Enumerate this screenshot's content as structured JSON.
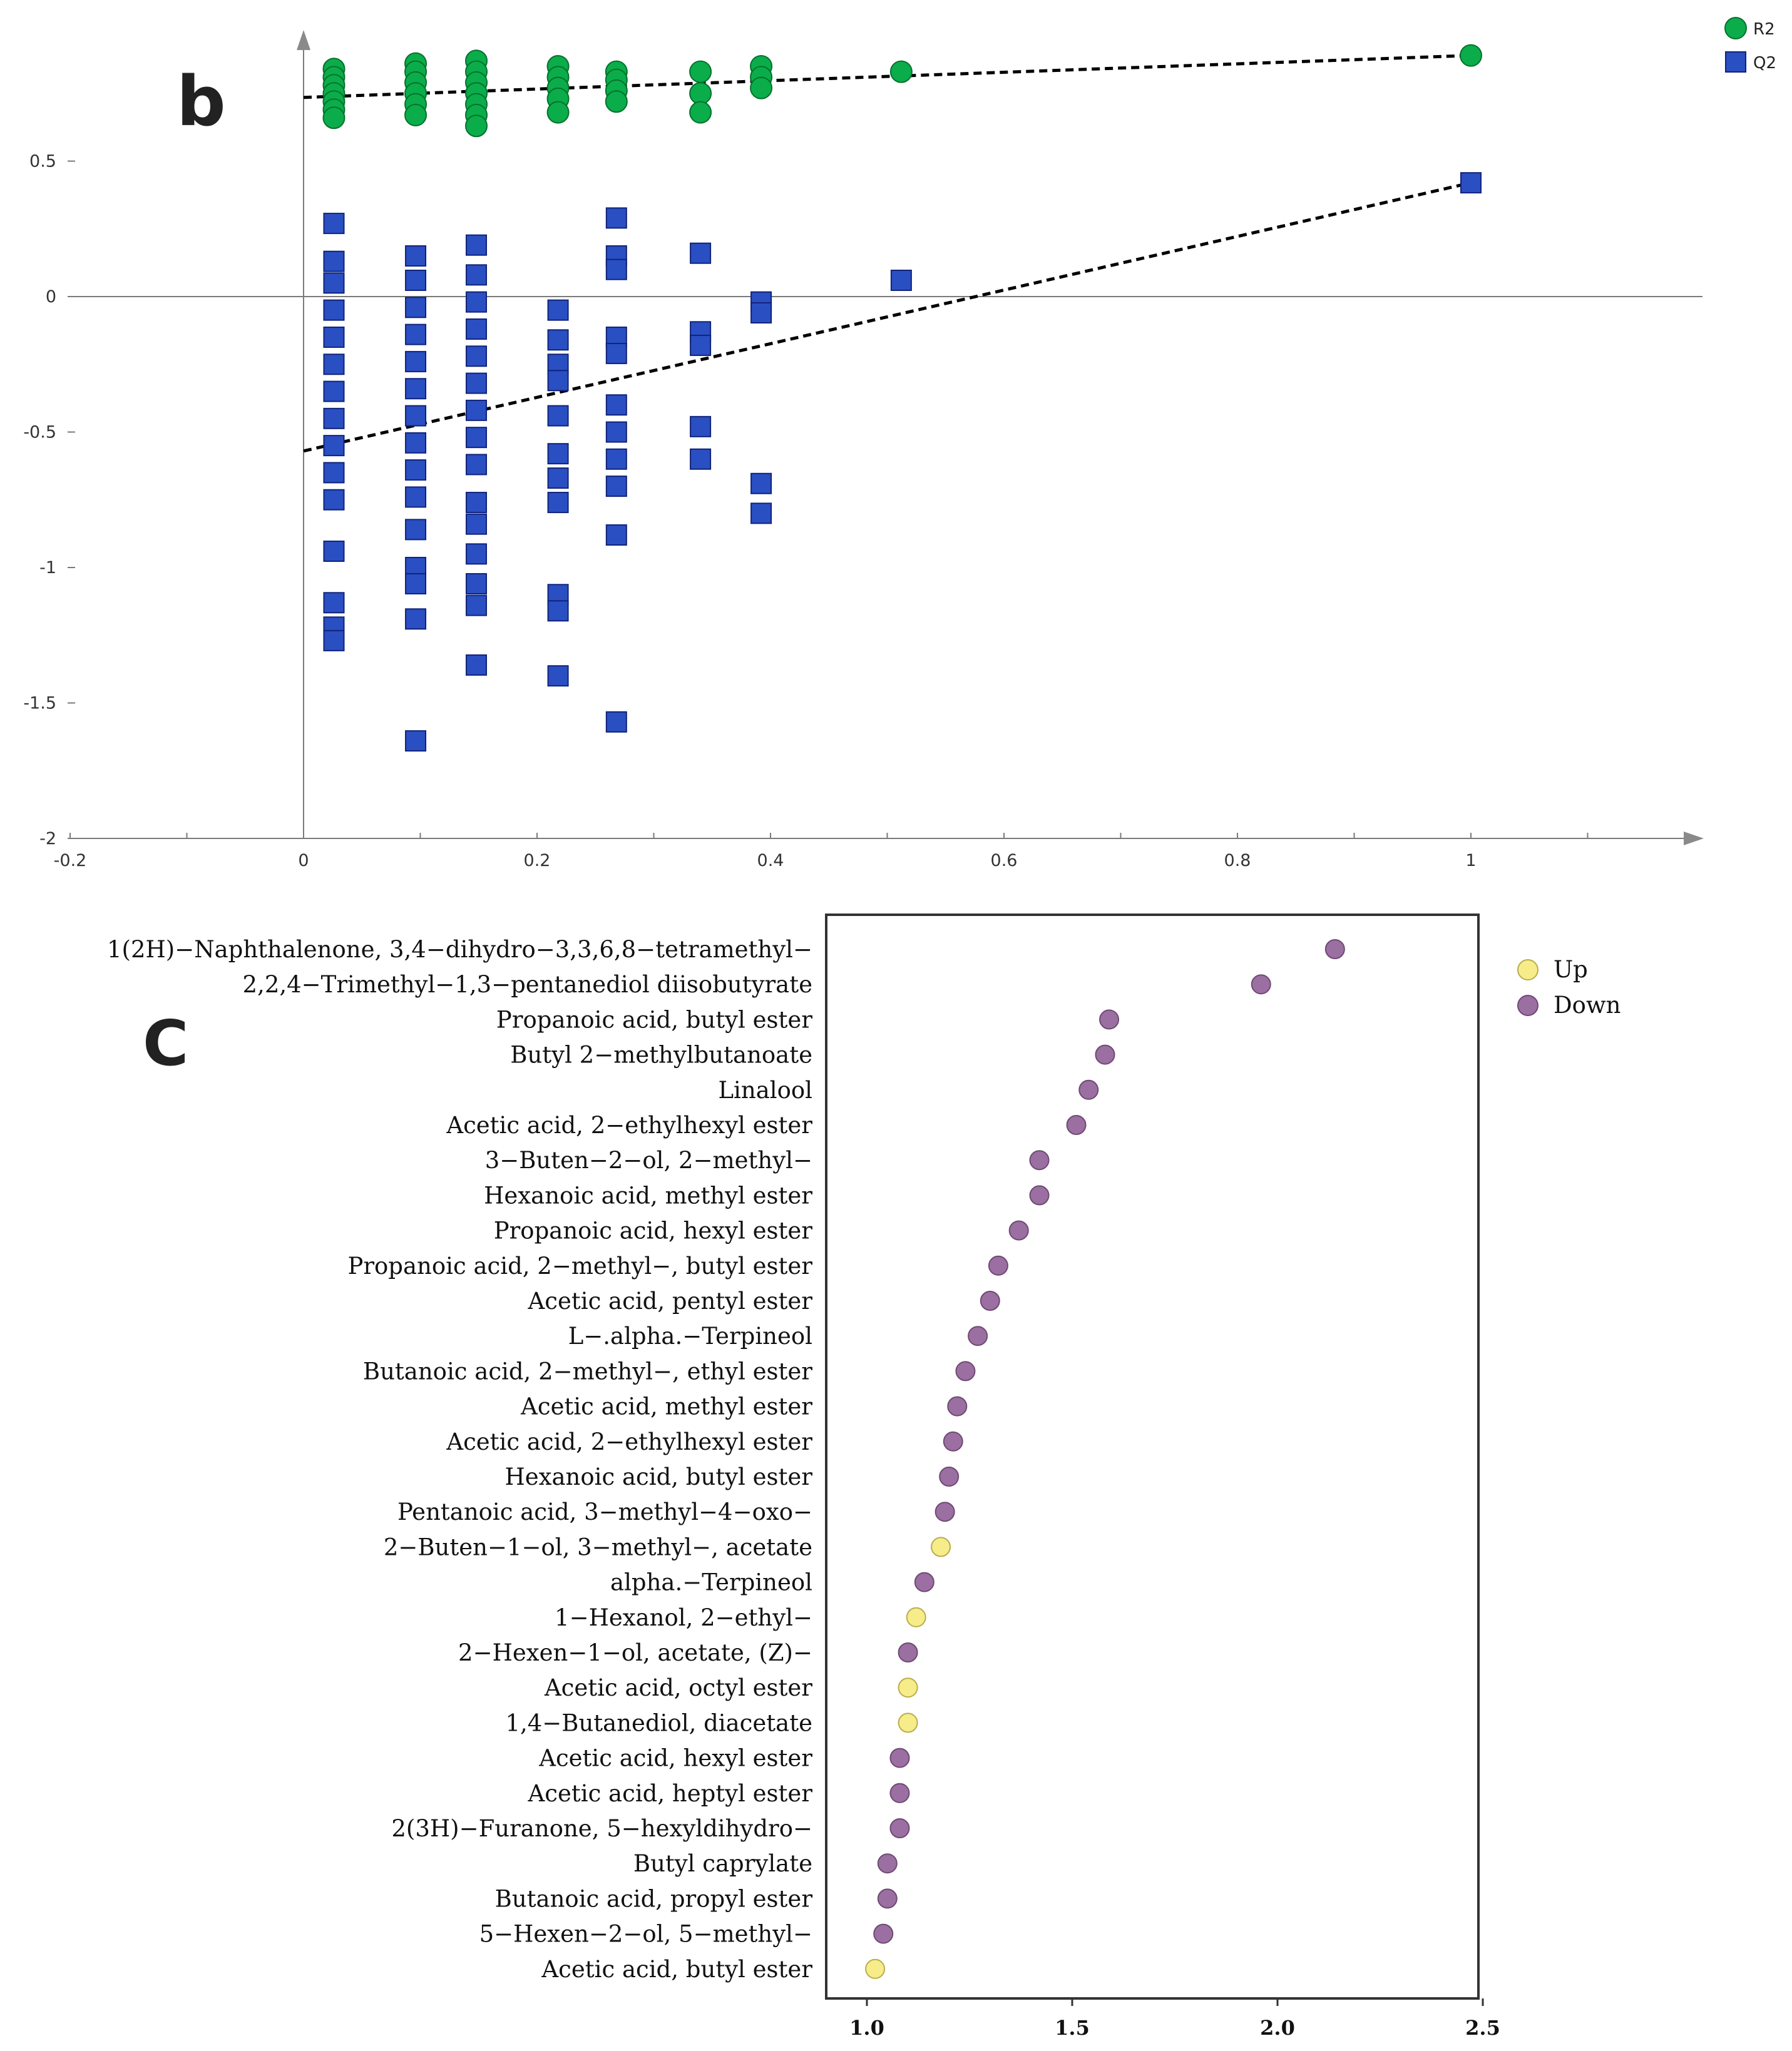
{
  "chart_data": [
    {
      "type": "scatter",
      "panel_label": "b",
      "title": "",
      "xlabel": "",
      "ylabel": "",
      "xlim": [
        -0.2,
        1.2
      ],
      "ylim": [
        -2,
        1
      ],
      "x_ticks": [
        -0.2,
        0,
        0.2,
        0.4,
        0.6,
        0.8,
        1
      ],
      "x_tick_labels": [
        "-0.2",
        "0",
        "0.2",
        "0.4",
        "0.6",
        "0.8",
        "1"
      ],
      "y_ticks": [
        0.5,
        0,
        -0.5,
        -1,
        -1.5,
        -2
      ],
      "y_tick_labels": [
        "0.5",
        "0",
        "-0.5",
        "-1",
        "-1.5",
        "-2"
      ],
      "legend": {
        "position": "top-right",
        "entries": [
          "R2",
          "Q2"
        ]
      },
      "series": [
        {
          "name": "R2",
          "marker": "circle",
          "color": "#0aad4a",
          "points": [
            {
              "x": 0.026,
              "y": 0.84
            },
            {
              "x": 0.026,
              "y": 0.81
            },
            {
              "x": 0.026,
              "y": 0.78
            },
            {
              "x": 0.026,
              "y": 0.75
            },
            {
              "x": 0.026,
              "y": 0.72
            },
            {
              "x": 0.026,
              "y": 0.69
            },
            {
              "x": 0.026,
              "y": 0.66
            },
            {
              "x": 0.096,
              "y": 0.86
            },
            {
              "x": 0.096,
              "y": 0.83
            },
            {
              "x": 0.096,
              "y": 0.79
            },
            {
              "x": 0.096,
              "y": 0.75
            },
            {
              "x": 0.096,
              "y": 0.71
            },
            {
              "x": 0.096,
              "y": 0.67
            },
            {
              "x": 0.148,
              "y": 0.87
            },
            {
              "x": 0.148,
              "y": 0.83
            },
            {
              "x": 0.148,
              "y": 0.79
            },
            {
              "x": 0.148,
              "y": 0.75
            },
            {
              "x": 0.148,
              "y": 0.71
            },
            {
              "x": 0.148,
              "y": 0.67
            },
            {
              "x": 0.148,
              "y": 0.63
            },
            {
              "x": 0.218,
              "y": 0.85
            },
            {
              "x": 0.218,
              "y": 0.81
            },
            {
              "x": 0.218,
              "y": 0.77
            },
            {
              "x": 0.218,
              "y": 0.73
            },
            {
              "x": 0.218,
              "y": 0.68
            },
            {
              "x": 0.268,
              "y": 0.83
            },
            {
              "x": 0.268,
              "y": 0.8
            },
            {
              "x": 0.268,
              "y": 0.76
            },
            {
              "x": 0.268,
              "y": 0.72
            },
            {
              "x": 0.34,
              "y": 0.83
            },
            {
              "x": 0.34,
              "y": 0.75
            },
            {
              "x": 0.34,
              "y": 0.68
            },
            {
              "x": 0.392,
              "y": 0.85
            },
            {
              "x": 0.392,
              "y": 0.81
            },
            {
              "x": 0.392,
              "y": 0.77
            },
            {
              "x": 0.512,
              "y": 0.83
            },
            {
              "x": 1.0,
              "y": 0.89
            }
          ],
          "trend": {
            "x": [
              0.0,
              1.0
            ],
            "y": [
              0.735,
              0.89
            ]
          }
        },
        {
          "name": "Q2",
          "marker": "square",
          "color": "#2a4fc2",
          "points": [
            {
              "x": 0.026,
              "y": 0.27
            },
            {
              "x": 0.026,
              "y": 0.13
            },
            {
              "x": 0.026,
              "y": 0.05
            },
            {
              "x": 0.026,
              "y": -0.05
            },
            {
              "x": 0.026,
              "y": -0.15
            },
            {
              "x": 0.026,
              "y": -0.25
            },
            {
              "x": 0.026,
              "y": -0.35
            },
            {
              "x": 0.026,
              "y": -0.45
            },
            {
              "x": 0.026,
              "y": -0.55
            },
            {
              "x": 0.026,
              "y": -0.65
            },
            {
              "x": 0.026,
              "y": -0.75
            },
            {
              "x": 0.026,
              "y": -0.94
            },
            {
              "x": 0.026,
              "y": -1.13
            },
            {
              "x": 0.026,
              "y": -1.22
            },
            {
              "x": 0.026,
              "y": -1.27
            },
            {
              "x": 0.096,
              "y": 0.15
            },
            {
              "x": 0.096,
              "y": 0.06
            },
            {
              "x": 0.096,
              "y": -0.04
            },
            {
              "x": 0.096,
              "y": -0.14
            },
            {
              "x": 0.096,
              "y": -0.24
            },
            {
              "x": 0.096,
              "y": -0.34
            },
            {
              "x": 0.096,
              "y": -0.44
            },
            {
              "x": 0.096,
              "y": -0.54
            },
            {
              "x": 0.096,
              "y": -0.64
            },
            {
              "x": 0.096,
              "y": -0.74
            },
            {
              "x": 0.096,
              "y": -0.86
            },
            {
              "x": 0.096,
              "y": -1.0
            },
            {
              "x": 0.096,
              "y": -1.06
            },
            {
              "x": 0.096,
              "y": -1.19
            },
            {
              "x": 0.096,
              "y": -1.64
            },
            {
              "x": 0.148,
              "y": 0.19
            },
            {
              "x": 0.148,
              "y": 0.08
            },
            {
              "x": 0.148,
              "y": -0.02
            },
            {
              "x": 0.148,
              "y": -0.12
            },
            {
              "x": 0.148,
              "y": -0.22
            },
            {
              "x": 0.148,
              "y": -0.32
            },
            {
              "x": 0.148,
              "y": -0.42
            },
            {
              "x": 0.148,
              "y": -0.52
            },
            {
              "x": 0.148,
              "y": -0.62
            },
            {
              "x": 0.148,
              "y": -0.76
            },
            {
              "x": 0.148,
              "y": -0.84
            },
            {
              "x": 0.148,
              "y": -0.95
            },
            {
              "x": 0.148,
              "y": -1.06
            },
            {
              "x": 0.148,
              "y": -1.14
            },
            {
              "x": 0.148,
              "y": -1.36
            },
            {
              "x": 0.218,
              "y": -0.05
            },
            {
              "x": 0.218,
              "y": -0.16
            },
            {
              "x": 0.218,
              "y": -0.25
            },
            {
              "x": 0.218,
              "y": -0.31
            },
            {
              "x": 0.218,
              "y": -0.44
            },
            {
              "x": 0.218,
              "y": -0.58
            },
            {
              "x": 0.218,
              "y": -0.67
            },
            {
              "x": 0.218,
              "y": -0.76
            },
            {
              "x": 0.218,
              "y": -1.1
            },
            {
              "x": 0.218,
              "y": -1.16
            },
            {
              "x": 0.218,
              "y": -1.4
            },
            {
              "x": 0.268,
              "y": 0.29
            },
            {
              "x": 0.268,
              "y": 0.15
            },
            {
              "x": 0.268,
              "y": 0.1
            },
            {
              "x": 0.268,
              "y": -0.15
            },
            {
              "x": 0.268,
              "y": -0.21
            },
            {
              "x": 0.268,
              "y": -0.4
            },
            {
              "x": 0.268,
              "y": -0.5
            },
            {
              "x": 0.268,
              "y": -0.6
            },
            {
              "x": 0.268,
              "y": -0.7
            },
            {
              "x": 0.268,
              "y": -0.88
            },
            {
              "x": 0.268,
              "y": -1.57
            },
            {
              "x": 0.34,
              "y": 0.16
            },
            {
              "x": 0.34,
              "y": -0.13
            },
            {
              "x": 0.34,
              "y": -0.18
            },
            {
              "x": 0.34,
              "y": -0.48
            },
            {
              "x": 0.34,
              "y": -0.6
            },
            {
              "x": 0.392,
              "y": -0.02
            },
            {
              "x": 0.392,
              "y": -0.06
            },
            {
              "x": 0.392,
              "y": -0.69
            },
            {
              "x": 0.392,
              "y": -0.8
            },
            {
              "x": 0.512,
              "y": 0.06
            },
            {
              "x": 1.0,
              "y": 0.42
            }
          ],
          "trend": {
            "x": [
              0.0,
              1.0
            ],
            "y": [
              -0.57,
              0.42
            ]
          }
        }
      ]
    },
    {
      "type": "scatter",
      "panel_label": "c",
      "title": "",
      "xlabel": "",
      "ylabel": "",
      "xlim": [
        0.9,
        2.5
      ],
      "x_ticks": [
        1.0,
        1.5,
        2.0,
        2.5
      ],
      "x_tick_labels": [
        "1.0",
        "1.5",
        "2.0",
        "2.5"
      ],
      "legend": {
        "position": "top-right",
        "entries": [
          "Up",
          "Down"
        ]
      },
      "colors": {
        "Up": "#f7ec8a",
        "Down": "#9c6fa2"
      },
      "categories": [
        "1(2H)−Naphthalenone, 3,4−dihydro−3,3,6,8−tetramethyl−",
        "2,2,4−Trimethyl−1,3−pentanediol diisobutyrate",
        "Propanoic acid, butyl ester",
        "Butyl 2−methylbutanoate",
        "Linalool",
        "Acetic acid, 2−ethylhexyl ester",
        "3−Buten−2−ol, 2−methyl−",
        "Hexanoic acid, methyl ester",
        "Propanoic acid, hexyl ester",
        "Propanoic acid, 2−methyl−, butyl ester",
        "Acetic acid, pentyl ester",
        "L−.alpha.−Terpineol",
        "Butanoic acid, 2−methyl−, ethyl ester",
        "Acetic acid, methyl ester",
        "Acetic acid, 2−ethylhexyl ester",
        "Hexanoic acid, butyl ester",
        "Pentanoic acid, 3−methyl−4−oxo−",
        "2−Buten−1−ol, 3−methyl−, acetate",
        "alpha.−Terpineol",
        "1−Hexanol, 2−ethyl−",
        "2−Hexen−1−ol, acetate, (Z)−",
        "Acetic acid, octyl ester",
        "1,4−Butanediol, diacetate",
        "Acetic acid, hexyl ester",
        "Acetic acid, heptyl ester",
        "2(3H)−Furanone, 5−hexyldihydro−",
        "Butyl caprylate",
        "Butanoic acid, propyl ester",
        "5−Hexen−2−ol, 5−methyl−",
        "Acetic acid, butyl ester"
      ],
      "values": [
        2.14,
        1.96,
        1.59,
        1.58,
        1.54,
        1.51,
        1.42,
        1.42,
        1.37,
        1.32,
        1.3,
        1.27,
        1.24,
        1.22,
        1.21,
        1.2,
        1.19,
        1.18,
        1.14,
        1.12,
        1.1,
        1.1,
        1.1,
        1.08,
        1.08,
        1.08,
        1.05,
        1.05,
        1.04,
        1.02
      ],
      "regulation": [
        "Down",
        "Down",
        "Down",
        "Down",
        "Down",
        "Down",
        "Down",
        "Down",
        "Down",
        "Down",
        "Down",
        "Down",
        "Down",
        "Down",
        "Down",
        "Down",
        "Down",
        "Up",
        "Down",
        "Up",
        "Down",
        "Up",
        "Up",
        "Down",
        "Down",
        "Down",
        "Down",
        "Down",
        "Down",
        "Up"
      ]
    }
  ]
}
